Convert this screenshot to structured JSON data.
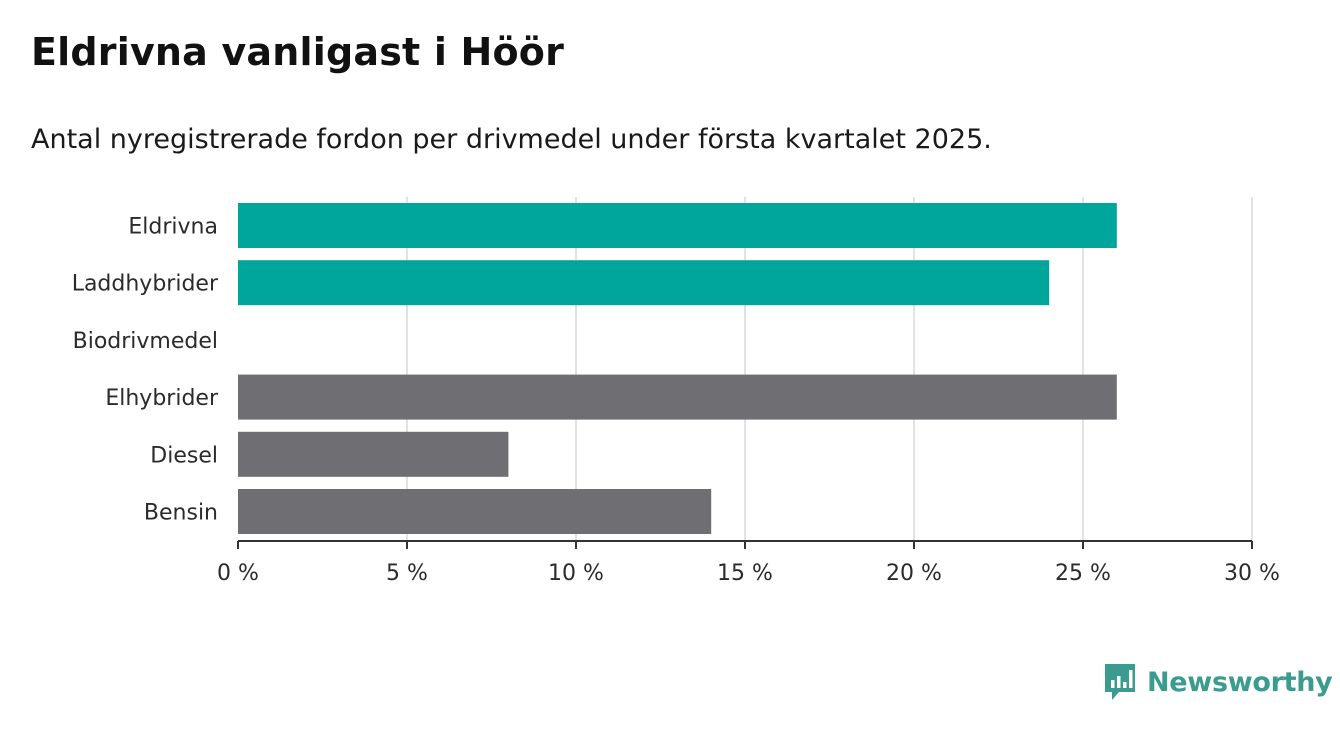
{
  "title": "Eldrivna vanligast i Höör",
  "subtitle": "Antal nyregistrerade fordon per drivmedel under första kvartalet 2025.",
  "brand": {
    "name": "Newsworthy",
    "icon": "newsworthy-logo-icon",
    "color": "#3a9b8f"
  },
  "colors": {
    "highlight": "#00a59b",
    "default": "#6e6e73",
    "grid": "#d9d9d9",
    "axis": "#333333"
  },
  "chart_data": {
    "type": "bar",
    "orientation": "horizontal",
    "categories": [
      "Eldrivna",
      "Laddhybrider",
      "Biodrivmedel",
      "Elhybrider",
      "Diesel",
      "Bensin"
    ],
    "values": [
      26,
      24,
      0,
      26,
      8,
      14
    ],
    "highlighted": [
      true,
      true,
      false,
      false,
      false,
      false
    ],
    "xlim": [
      0,
      30
    ],
    "xticks": [
      0,
      5,
      10,
      15,
      20,
      25,
      30
    ],
    "xtick_labels": [
      "0 %",
      "5 %",
      "10 %",
      "15 %",
      "20 %",
      "25 %",
      "30 %"
    ],
    "grid": "vertical",
    "legend": "none"
  }
}
